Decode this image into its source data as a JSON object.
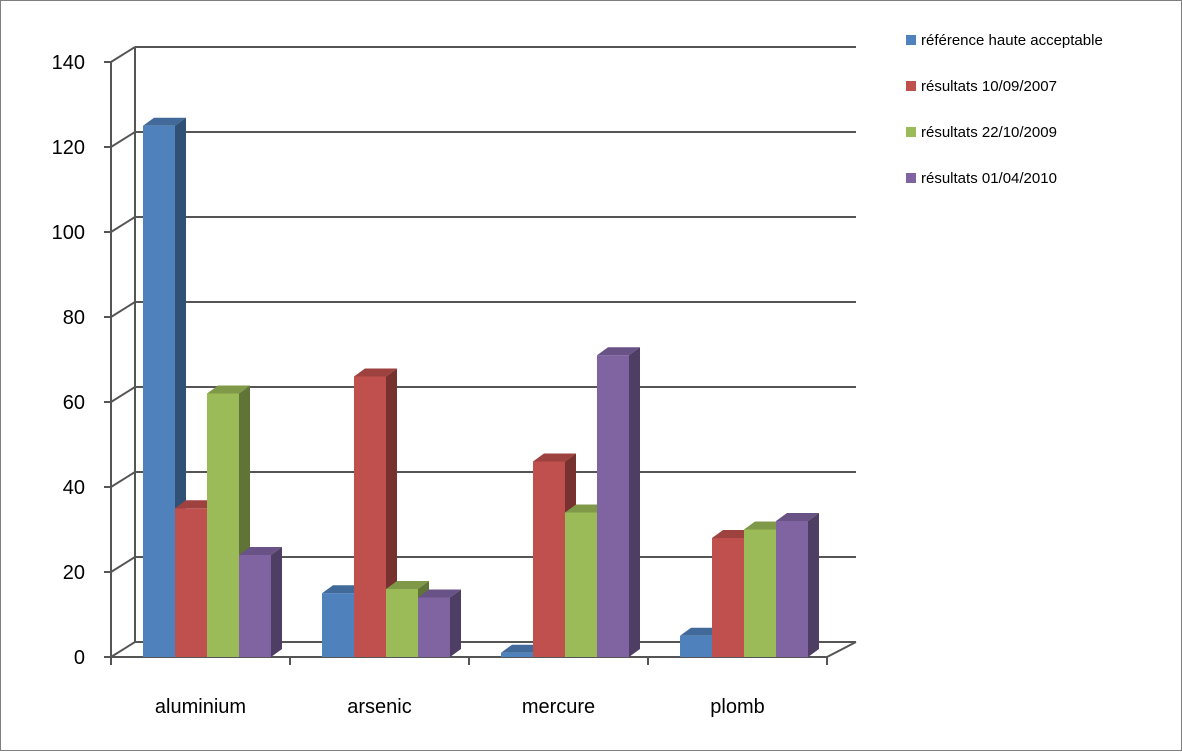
{
  "chart_data": {
    "type": "bar",
    "title": "",
    "xlabel": "",
    "ylabel": "",
    "categories": [
      "aluminium",
      "arsenic",
      "mercure",
      "plomb"
    ],
    "series": [
      {
        "name": "référence haute acceptable",
        "color": "#4f81bd",
        "values": [
          125,
          15,
          1,
          5
        ]
      },
      {
        "name": "résultats 10/09/2007",
        "color": "#c0504d",
        "values": [
          35,
          66,
          46,
          28
        ]
      },
      {
        "name": "résultats 22/10/2009",
        "color": "#9bbb59",
        "values": [
          62,
          16,
          34,
          30
        ]
      },
      {
        "name": "résultats 01/04/2010",
        "color": "#8064a2",
        "values": [
          24,
          14,
          71,
          32
        ]
      }
    ],
    "ylim": [
      0,
      140
    ],
    "yticks": [
      0,
      20,
      40,
      60,
      80,
      100,
      120,
      140
    ],
    "grid": true,
    "legend_position": "right",
    "style": "3d-clustered-column"
  }
}
